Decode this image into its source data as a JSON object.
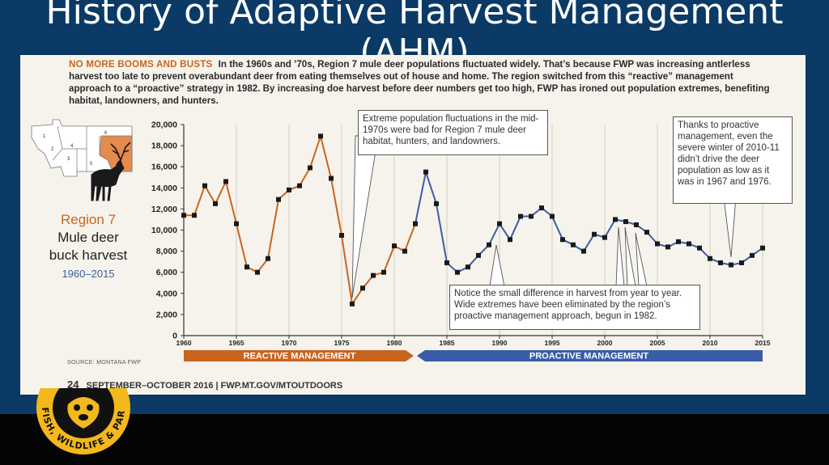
{
  "slide": {
    "title": "History of Adaptive Harvest Management (AHM)"
  },
  "panel": {
    "intro_lead": "NO MORE BOOMS AND BUSTS",
    "intro_text": "In the 1960s and ’70s, Region 7 mule deer populations fluctuated widely. That’s because FWP was increasing antlerless harvest too late to prevent overabundant deer from eating themselves out of house and home. The region switched from this “reactive” management approach to a “proactive” strategy in 1982. By increasing doe harvest before deer numbers get too high, FWP has ironed out population extremes, benefiting habitat, landowners, and hunters.",
    "region_label": "Region 7",
    "subtitle_line1": "Mule deer",
    "subtitle_line2": "buck harvest",
    "years": "1960–2015",
    "source": "SOURCE: MONTANA FWP",
    "footer_page": "24",
    "footer_text": "SEPTEMBER–OCTOBER 2016 | FWP.MT.GOV/MTOUTDOORS",
    "map_number": "7",
    "callouts": [
      "Extreme population fluctuations in the mid-1970s were bad for Region 7 mule deer habitat, hunters, and landowners.",
      "Thanks to proactive management, even the severe winter of 2010-11 didn’t drive the deer population as low as it was in 1967 and 1976.",
      "Notice the small difference in harvest from year to year. Wide extremes have been eliminated by the region’s proactive management approach, begun in 1982."
    ]
  },
  "logo": {
    "text": "FISH, WILDLIFE & PARKS"
  },
  "chart_data": {
    "type": "line",
    "ylim": [
      0,
      20000
    ],
    "yticks": [
      0,
      2000,
      4000,
      6000,
      8000,
      10000,
      12000,
      14000,
      16000,
      18000,
      20000
    ],
    "ytick_labels": [
      "0",
      "2,000",
      "4,000",
      "6,000",
      "8,000",
      "10,000",
      "12,000",
      "14,000",
      "16,000",
      "18,000",
      "20,000"
    ],
    "xlim": [
      1960,
      2015
    ],
    "xticks": [
      1960,
      1965,
      1970,
      1975,
      1980,
      1985,
      1990,
      1995,
      2000,
      2005,
      2010,
      2015
    ],
    "grid": "vertical",
    "bands": [
      {
        "label": "REACTIVE MANAGEMENT",
        "start": 1960,
        "end": 1982,
        "color": "#c8651f"
      },
      {
        "label": "PROACTIVE MANAGEMENT",
        "start": 1982,
        "end": 2015,
        "color": "#3a5ca8"
      }
    ],
    "series": [
      {
        "color": "#c8651f",
        "x": [
          1960,
          1961,
          1962,
          1963,
          1964,
          1965,
          1966,
          1967,
          1968,
          1969,
          1970,
          1971,
          1972,
          1973,
          1974,
          1975,
          1976,
          1977,
          1978,
          1979,
          1980,
          1981,
          1982
        ],
        "y": [
          11400,
          11400,
          14200,
          12500,
          14600,
          10600,
          6500,
          6000,
          7300,
          12900,
          13800,
          14200,
          15900,
          18900,
          14900,
          9500,
          3000,
          4500,
          5700,
          6000,
          8500,
          8000,
          10600
        ]
      },
      {
        "color": "#3a5ca8",
        "x": [
          1982,
          1983,
          1984,
          1985,
          1986,
          1987,
          1988,
          1989,
          1990,
          1991,
          1992,
          1993,
          1994,
          1995,
          1996,
          1997,
          1998,
          1999,
          2000,
          2001,
          2002,
          2003,
          2004,
          2005,
          2006,
          2007,
          2008,
          2009,
          2010,
          2011,
          2012,
          2013,
          2014,
          2015
        ],
        "y": [
          10600,
          15500,
          12500,
          6900,
          6000,
          6500,
          7600,
          8600,
          10600,
          9100,
          11300,
          11300,
          12100,
          11300,
          9100,
          8600,
          8000,
          9600,
          9300,
          11000,
          10800,
          10500,
          9800,
          8700,
          8400,
          8900,
          8700,
          8300,
          7300,
          6900,
          6700,
          6900,
          7600,
          8300
        ]
      }
    ]
  }
}
